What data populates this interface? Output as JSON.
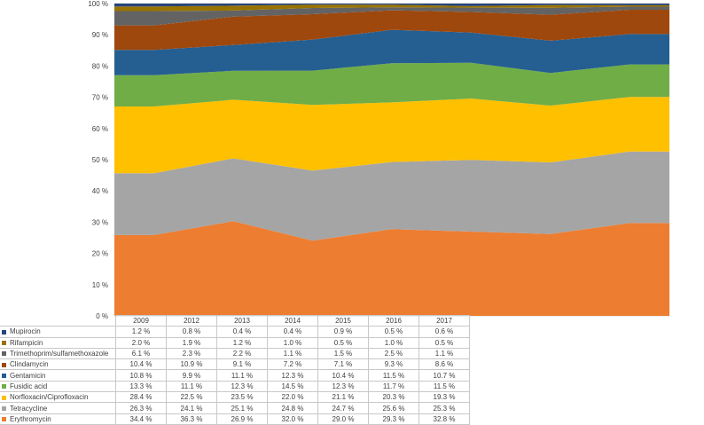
{
  "chart_data": {
    "type": "area",
    "stacking": "percent",
    "categories": [
      "2009",
      "2012",
      "2013",
      "2014",
      "2015",
      "2016",
      "2017"
    ],
    "ylim": [
      0,
      100
    ],
    "yticks": [
      "0 %",
      "10 %",
      "20 %",
      "30 %",
      "40 %",
      "50 %",
      "60 %",
      "70 %",
      "80 %",
      "90 %",
      "100 %"
    ],
    "series": [
      {
        "name": "Erythromycin",
        "color": "#ed7d31",
        "values": [
          34.4,
          36.3,
          26.9,
          32.0,
          29.0,
          29.3,
          32.8
        ],
        "labels": [
          "34.4 %",
          "36.3 %",
          "26.9 %",
          "32.0 %",
          "29.0 %",
          "29.3 %",
          "32.8 %"
        ]
      },
      {
        "name": "Tetracycline",
        "color": "#a5a5a5",
        "values": [
          26.3,
          24.1,
          25.1,
          24.8,
          24.7,
          25.6,
          25.3
        ],
        "labels": [
          "26.3 %",
          "24.1 %",
          "25.1 %",
          "24.8 %",
          "24.7 %",
          "25.6 %",
          "25.3 %"
        ]
      },
      {
        "name": "Norfloxacin/Ciprofloxacin",
        "color": "#ffc000",
        "values": [
          28.4,
          22.5,
          23.5,
          22.0,
          21.1,
          20.3,
          19.3
        ],
        "labels": [
          "28.4 %",
          "22.5 %",
          "23.5 %",
          "22.0 %",
          "21.1 %",
          "20.3 %",
          "19.3 %"
        ]
      },
      {
        "name": "Fusidic acid",
        "color": "#70ad47",
        "values": [
          13.3,
          11.1,
          12.3,
          14.5,
          12.3,
          11.7,
          11.5
        ],
        "labels": [
          "13.3 %",
          "11.1 %",
          "12.3 %",
          "14.5 %",
          "12.3 %",
          "11.7 %",
          "11.5 %"
        ]
      },
      {
        "name": "Gentamicin",
        "color": "#255e91",
        "values": [
          10.8,
          9.9,
          11.1,
          12.3,
          10.4,
          11.5,
          10.7
        ],
        "labels": [
          "10.8 %",
          "9.9 %",
          "11.1 %",
          "12.3 %",
          "10.4 %",
          "11.5 %",
          "10.7 %"
        ]
      },
      {
        "name": "Clindamycin",
        "color": "#9e480e",
        "values": [
          10.4,
          10.9,
          9.1,
          7.2,
          7.1,
          9.3,
          8.6
        ],
        "labels": [
          "10.4 %",
          "10.9 %",
          "9.1 %",
          "7.2 %",
          "7.1 %",
          "9.3 %",
          "8.6 %"
        ]
      },
      {
        "name": "Trimethoprim/sulfamethoxazole",
        "color": "#636363",
        "values": [
          6.1,
          2.3,
          2.2,
          1.1,
          1.5,
          2.5,
          1.1
        ],
        "labels": [
          "6.1 %",
          "2.3 %",
          "2.2 %",
          "1.1 %",
          "1.5 %",
          "2.5 %",
          "1.1 %"
        ]
      },
      {
        "name": "Rifampicin",
        "color": "#997300",
        "values": [
          2.0,
          1.9,
          1.2,
          1.0,
          0.5,
          1.0,
          0.5
        ],
        "labels": [
          "2.0 %",
          "1.9 %",
          "1.2 %",
          "1.0 %",
          "0.5 %",
          "1.0 %",
          "0.5 %"
        ]
      },
      {
        "name": "Mupirocin",
        "color": "#264478",
        "values": [
          1.2,
          0.8,
          0.4,
          0.4,
          0.9,
          0.5,
          0.6
        ],
        "labels": [
          "1.2 %",
          "0.8 %",
          "0.4 %",
          "0.4 %",
          "0.9 %",
          "0.5 %",
          "0.6 %"
        ]
      }
    ],
    "table_row_order": [
      "Mupirocin",
      "Rifampicin",
      "Trimethoprim/sulfamethoxazole",
      "Clindamycin",
      "Gentamicin",
      "Fusidic acid",
      "Norfloxacin/Ciprofloxacin",
      "Tetracycline",
      "Erythromycin"
    ]
  }
}
